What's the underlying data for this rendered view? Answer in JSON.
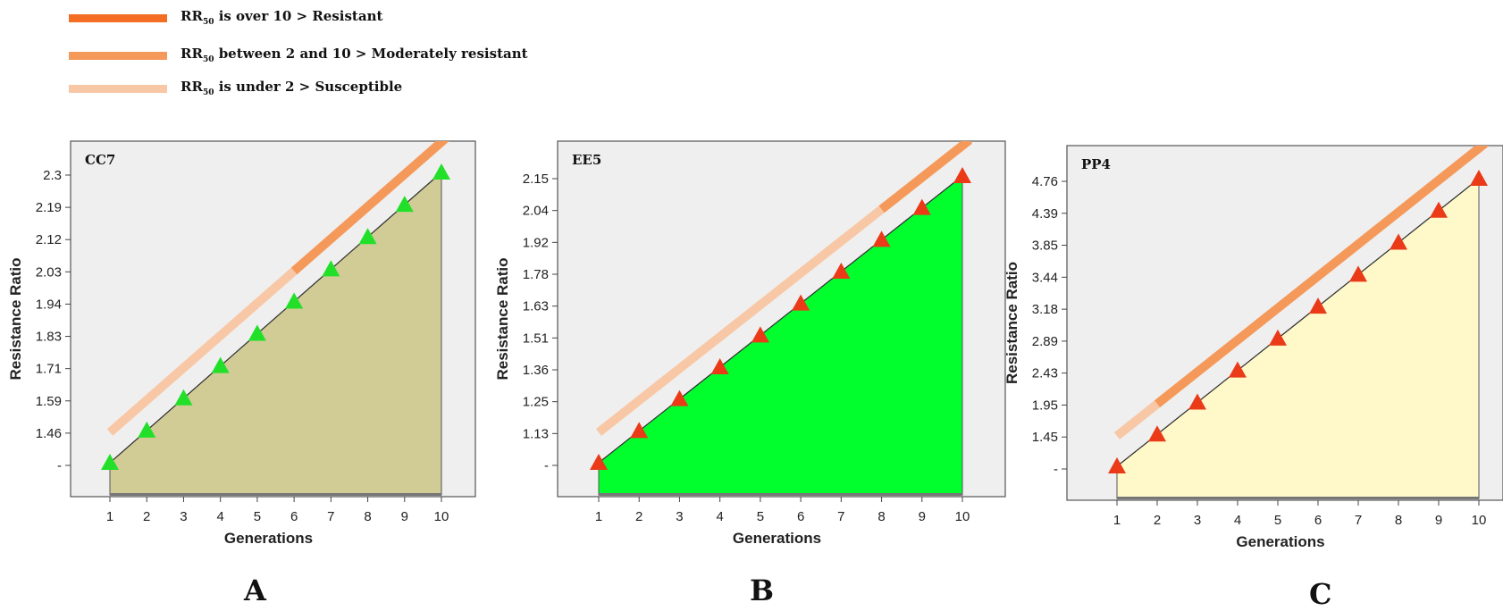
{
  "legend": {
    "items": [
      {
        "prefix": "RR",
        "sub": "50",
        "text": " is over 10 > Resistant",
        "color": "#f36e22"
      },
      {
        "prefix": "RR",
        "sub": "50",
        "text": " between 2 and 10 > Moderately resistant",
        "color": "#f5995a"
      },
      {
        "prefix": "RR",
        "sub": "50",
        "text": " is under 2 > Susceptible",
        "color": "#f8c8a6"
      }
    ]
  },
  "panels": {
    "a": "A",
    "b": "B",
    "c": "C"
  },
  "chart_data": [
    {
      "type": "area",
      "title": "CC7",
      "xlabel": "Generations",
      "ylabel": "Resistance Ratio",
      "x": [
        1,
        2,
        3,
        4,
        5,
        6,
        7,
        8,
        9,
        10
      ],
      "y_tick_labels": [
        "-",
        "1.46",
        "1.59",
        "1.71",
        "1.83",
        "1.94",
        "2.03",
        "2.12",
        "2.19",
        "2.3"
      ],
      "series": [
        {
          "values": [
            1,
            2,
            3,
            4,
            5,
            6,
            7,
            8,
            9,
            10
          ]
        }
      ],
      "fill_color": "#d1cb96",
      "marker_color": "#22e02a",
      "marker": "triangle",
      "band_switch_x": 6,
      "grid": false
    },
    {
      "type": "area",
      "title": "EE5",
      "xlabel": "Generations",
      "ylabel": "Resistance Ratio",
      "x": [
        1,
        2,
        3,
        4,
        5,
        6,
        7,
        8,
        9,
        10
      ],
      "y_tick_labels": [
        "-",
        "1.13",
        "1.25",
        "1.36",
        "1.51",
        "1.63",
        "1.78",
        "1.92",
        "2.04",
        "2.15"
      ],
      "series": [
        {
          "values": [
            1,
            2,
            3,
            4,
            5,
            6,
            7,
            8,
            9,
            10
          ]
        }
      ],
      "fill_color": "#00ff2d",
      "marker_color": "#ea3a18",
      "marker": "triangle",
      "band_switch_x": 8,
      "grid": false
    },
    {
      "type": "area",
      "title": "PP4",
      "xlabel": "Generations",
      "ylabel": "Resistance Ratio",
      "x": [
        1,
        2,
        3,
        4,
        5,
        6,
        7,
        8,
        9,
        10
      ],
      "y_tick_labels": [
        "-",
        "1.45",
        "1.95",
        "2.43",
        "2.89",
        "3.18",
        "3.44",
        "3.85",
        "4.39",
        "4.76"
      ],
      "series": [
        {
          "values": [
            1,
            2,
            3,
            4,
            5,
            6,
            7,
            8,
            9,
            10
          ]
        }
      ],
      "fill_color": "#fff9c9",
      "marker_color": "#ea3a18",
      "marker": "triangle",
      "band_switch_x": 2,
      "grid": false
    }
  ],
  "colors": {
    "plot_bg": "#efefef",
    "band_light": "#f8c8a6",
    "band_mid": "#f5995a",
    "band_dark": "#f36e22"
  }
}
